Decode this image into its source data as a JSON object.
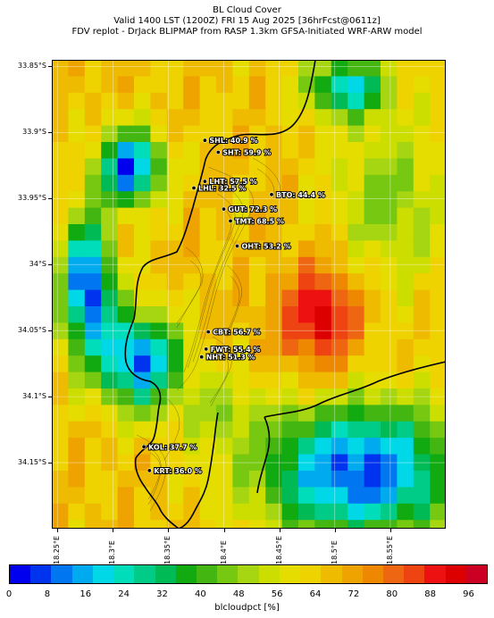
{
  "title": {
    "line1": "BL Cloud Cover",
    "line2": "Valid 1400 LST (1200Z) FRI 15 Aug 2025 [36hrFcst@0611z]",
    "line3": "FDV replot - DrJack BLIPMAP from RASP 1.3km GFSA-Initiated WRF-ARW model"
  },
  "axes": {
    "lat_ticks": [
      "33.85°S",
      "33.9°S",
      "33.95°S",
      "34°S",
      "34.05°S",
      "34.1°S",
      "34.15°S"
    ],
    "lon_ticks": [
      "18.25°E",
      "18.3°E",
      "18.35°E",
      "18.4°E",
      "18.45°E",
      "18.5°E",
      "18.55°E"
    ],
    "lat_range": [
      -34.2,
      -33.845
    ],
    "lon_range": [
      18.245,
      18.6
    ]
  },
  "stations": [
    {
      "code": "SHL",
      "text": "SHL: 40.9 %",
      "lat": -33.906,
      "lon": 18.383,
      "value": 40.9
    },
    {
      "code": "SHT",
      "text": "SHT: 59.9 %",
      "lat": -33.915,
      "lon": 18.395,
      "value": 59.9
    },
    {
      "code": "LHT",
      "text": "LHT: 57.5 %",
      "lat": -33.937,
      "lon": 18.383,
      "value": 57.5
    },
    {
      "code": "LHL",
      "text": "LHL: 32.5 %",
      "lat": -33.942,
      "lon": 18.373,
      "value": 32.5
    },
    {
      "code": "BTO",
      "text": "BTO: 44.4 %",
      "lat": -33.947,
      "lon": 18.443,
      "value": 44.4
    },
    {
      "code": "GUT",
      "text": "GUT: 72.3 %",
      "lat": -33.958,
      "lon": 18.4,
      "value": 72.3
    },
    {
      "code": "TMT",
      "text": "TMT: 68.5 %",
      "lat": -33.967,
      "lon": 18.406,
      "value": 68.5
    },
    {
      "code": "OHT",
      "text": "OHT: 53.2 %",
      "lat": -33.986,
      "lon": 18.412,
      "value": 53.2
    },
    {
      "code": "CBT",
      "text": "CBT: 56.7 %",
      "lat": -34.051,
      "lon": 18.386,
      "value": 56.7
    },
    {
      "code": "FWT",
      "text": "FWT: 55.4 %",
      "lat": -34.064,
      "lon": 18.384,
      "value": 55.4
    },
    {
      "code": "NHT",
      "text": "NHT: 51.3 %",
      "lat": -34.07,
      "lon": 18.38,
      "value": 51.3
    },
    {
      "code": "KOL",
      "text": "KOL: 37.7 %",
      "lat": -34.138,
      "lon": 18.328,
      "value": 37.7
    },
    {
      "code": "KRT",
      "text": "KRT: 36.0 %",
      "lat": -34.156,
      "lon": 18.333,
      "value": 36.0
    }
  ],
  "colorbar": {
    "label": "blcloudpct [%]",
    "ticks": [
      "0",
      "8",
      "16",
      "24",
      "32",
      "40",
      "48",
      "56",
      "64",
      "72",
      "80",
      "88",
      "96"
    ],
    "range": [
      0,
      100
    ],
    "colors": [
      "#0000ee",
      "#0033ee",
      "#0077f0",
      "#00aaee",
      "#00d8e8",
      "#00ddbb",
      "#00cc88",
      "#00bb55",
      "#11aa11",
      "#44b611",
      "#77c811",
      "#a6d611",
      "#ccdd00",
      "#e5dd00",
      "#eed300",
      "#eebb00",
      "#eea300",
      "#ee8800",
      "#ee6611",
      "#ee4411",
      "#ee1111",
      "#dd0000",
      "#cc0022"
    ]
  }
}
